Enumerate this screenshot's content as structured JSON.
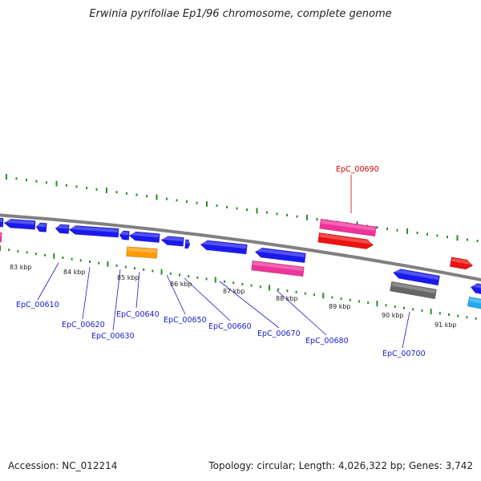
{
  "title": "Erwinia pyrifoliae Ep1/96 chromosome, complete genome",
  "footer": {
    "accession": "Accession: NC_012214",
    "summary": "Topology: circular; Length: 4,026,322 bp; Genes: 3,742"
  },
  "colors": {
    "backbone": "#808080",
    "tick_dots": "#2e8b2e",
    "cds_blue": "#1a1aee",
    "cds_pink": "#ee3399",
    "cds_red": "#ee1111",
    "cds_orange": "#ff9900",
    "cds_gray": "#666666",
    "cds_cyan": "#22aaee",
    "label_blue": "#1a1acc",
    "label_red": "#cc0000"
  },
  "kbp_labels": [
    "83 kbp",
    "84 kbp",
    "85 kbp",
    "86 kbp",
    "87 kbp",
    "88 kbp",
    "89 kbp",
    "90 kbp",
    "91 kbp"
  ],
  "gene_labels": [
    {
      "text": "EpC_00610",
      "color": "blue"
    },
    {
      "text": "EpC_00620",
      "color": "blue"
    },
    {
      "text": "EpC_00630",
      "color": "blue"
    },
    {
      "text": "EpC_00640",
      "color": "blue"
    },
    {
      "text": "EpC_00650",
      "color": "blue"
    },
    {
      "text": "EpC_00660",
      "color": "blue"
    },
    {
      "text": "EpC_00670",
      "color": "blue"
    },
    {
      "text": "EpC_00680",
      "color": "blue"
    },
    {
      "text": "EpC_00690",
      "color": "red"
    },
    {
      "text": "EpC_00700",
      "color": "blue"
    }
  ]
}
